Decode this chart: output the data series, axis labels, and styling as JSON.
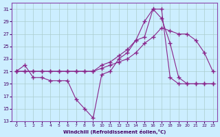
{
  "xlabel": "Windchill (Refroidissement éolien,°C)",
  "background_color": "#cceeff",
  "grid_color": "#aacccc",
  "line_color": "#882288",
  "xlim": [
    -0.5,
    23.5
  ],
  "ylim": [
    13,
    32
  ],
  "yticks": [
    13,
    15,
    17,
    19,
    21,
    23,
    25,
    27,
    29,
    31
  ],
  "xticks": [
    0,
    1,
    2,
    3,
    4,
    5,
    6,
    7,
    8,
    9,
    10,
    11,
    12,
    13,
    14,
    15,
    16,
    17,
    18,
    19,
    20,
    21,
    22,
    23
  ],
  "line1_x": [
    0,
    1,
    2,
    3,
    4,
    5,
    6,
    7,
    8,
    9,
    10,
    11,
    12,
    13,
    14,
    15,
    16,
    17,
    18,
    19,
    20,
    21,
    22,
    23
  ],
  "line1_y": [
    21,
    22,
    20,
    20,
    19.5,
    19.5,
    19.5,
    16.5,
    15,
    13.5,
    20.5,
    21,
    23,
    24,
    26,
    26.5,
    31,
    31,
    20,
    19,
    19,
    19,
    19,
    19
  ],
  "line2_x": [
    0,
    1,
    2,
    3,
    4,
    5,
    6,
    7,
    8,
    9,
    10,
    11,
    12,
    13,
    14,
    15,
    16,
    17,
    18,
    19,
    20,
    21,
    22,
    23
  ],
  "line2_y": [
    21,
    21,
    21,
    21,
    21,
    21,
    21,
    21,
    21,
    21,
    21.5,
    22,
    22.5,
    23,
    24,
    25.5,
    26.5,
    28,
    27.5,
    27,
    27,
    26,
    24,
    21
  ],
  "line3_x": [
    0,
    1,
    2,
    3,
    4,
    5,
    6,
    7,
    8,
    9,
    10,
    11,
    12,
    13,
    14,
    15,
    16,
    17,
    18,
    19,
    20,
    21,
    22,
    23
  ],
  "line3_y": [
    21,
    21,
    21,
    21,
    21,
    21,
    21,
    21,
    21,
    21,
    22,
    22.5,
    23.5,
    24.5,
    26,
    29,
    31,
    29.5,
    25.5,
    20,
    19,
    19,
    19,
    19
  ]
}
